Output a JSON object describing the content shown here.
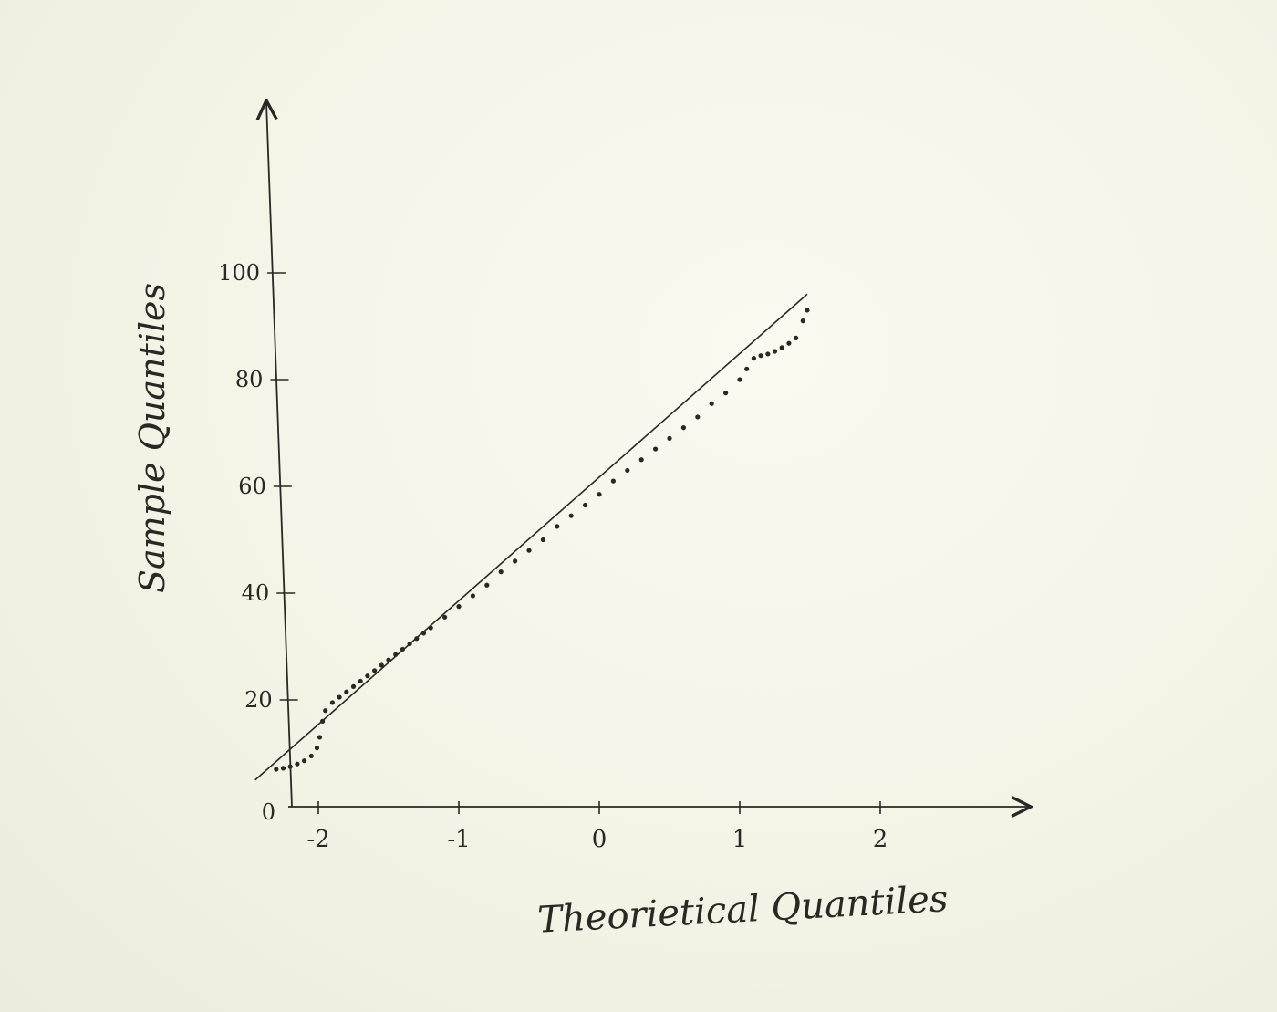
{
  "chart_data": {
    "type": "scatter",
    "xlabel": "Theorietical Quantiles",
    "ylabel": "Sample Quantiles",
    "x_ticks": [
      {
        "value": -2,
        "label": "-2"
      },
      {
        "value": -1,
        "label": "-1"
      },
      {
        "value": 0,
        "label": "0"
      },
      {
        "value": 1,
        "label": "1"
      },
      {
        "value": 2,
        "label": "2"
      }
    ],
    "y_ticks": [
      {
        "value": 0,
        "label": "0"
      },
      {
        "value": 20,
        "label": "20"
      },
      {
        "value": 40,
        "label": "40"
      },
      {
        "value": 60,
        "label": "60"
      },
      {
        "value": 80,
        "label": "80"
      },
      {
        "value": 100,
        "label": "100"
      }
    ],
    "xlim": [
      -2.7,
      3.2
    ],
    "ylim": [
      0,
      130
    ],
    "grid": false,
    "reference_line": {
      "x": [
        -2.45,
        1.48
      ],
      "y": [
        5,
        96
      ]
    },
    "points": {
      "x": [
        -2.3,
        -2.25,
        -2.2,
        -2.15,
        -2.1,
        -2.05,
        -2.01,
        -1.99,
        -1.97,
        -1.95,
        -1.9,
        -1.85,
        -1.8,
        -1.75,
        -1.7,
        -1.65,
        -1.6,
        -1.55,
        -1.5,
        -1.45,
        -1.4,
        -1.35,
        -1.3,
        -1.25,
        -1.2,
        -1.1,
        -1.0,
        -0.9,
        -0.8,
        -0.7,
        -0.6,
        -0.5,
        -0.4,
        -0.3,
        -0.2,
        -0.1,
        0.0,
        0.1,
        0.2,
        0.3,
        0.4,
        0.5,
        0.6,
        0.7,
        0.8,
        0.9,
        1.0,
        1.05,
        1.1,
        1.15,
        1.2,
        1.25,
        1.3,
        1.35,
        1.4,
        1.45,
        1.48
      ],
      "y": [
        7,
        7.2,
        7.5,
        8,
        8.6,
        9.5,
        11,
        13,
        16,
        18,
        19.5,
        20.5,
        21.5,
        22.5,
        23.5,
        24.5,
        25.5,
        26.5,
        27.5,
        28.5,
        29.5,
        30.5,
        31.5,
        32.5,
        33.5,
        35.5,
        37.5,
        39.5,
        41.5,
        44,
        46,
        48,
        50,
        52.5,
        54.5,
        56.5,
        58.5,
        61,
        63,
        65,
        67,
        69,
        71,
        73,
        75.5,
        77.5,
        80,
        82,
        84,
        84.5,
        84.8,
        85.3,
        86,
        86.8,
        87.8,
        91,
        93
      ]
    }
  }
}
